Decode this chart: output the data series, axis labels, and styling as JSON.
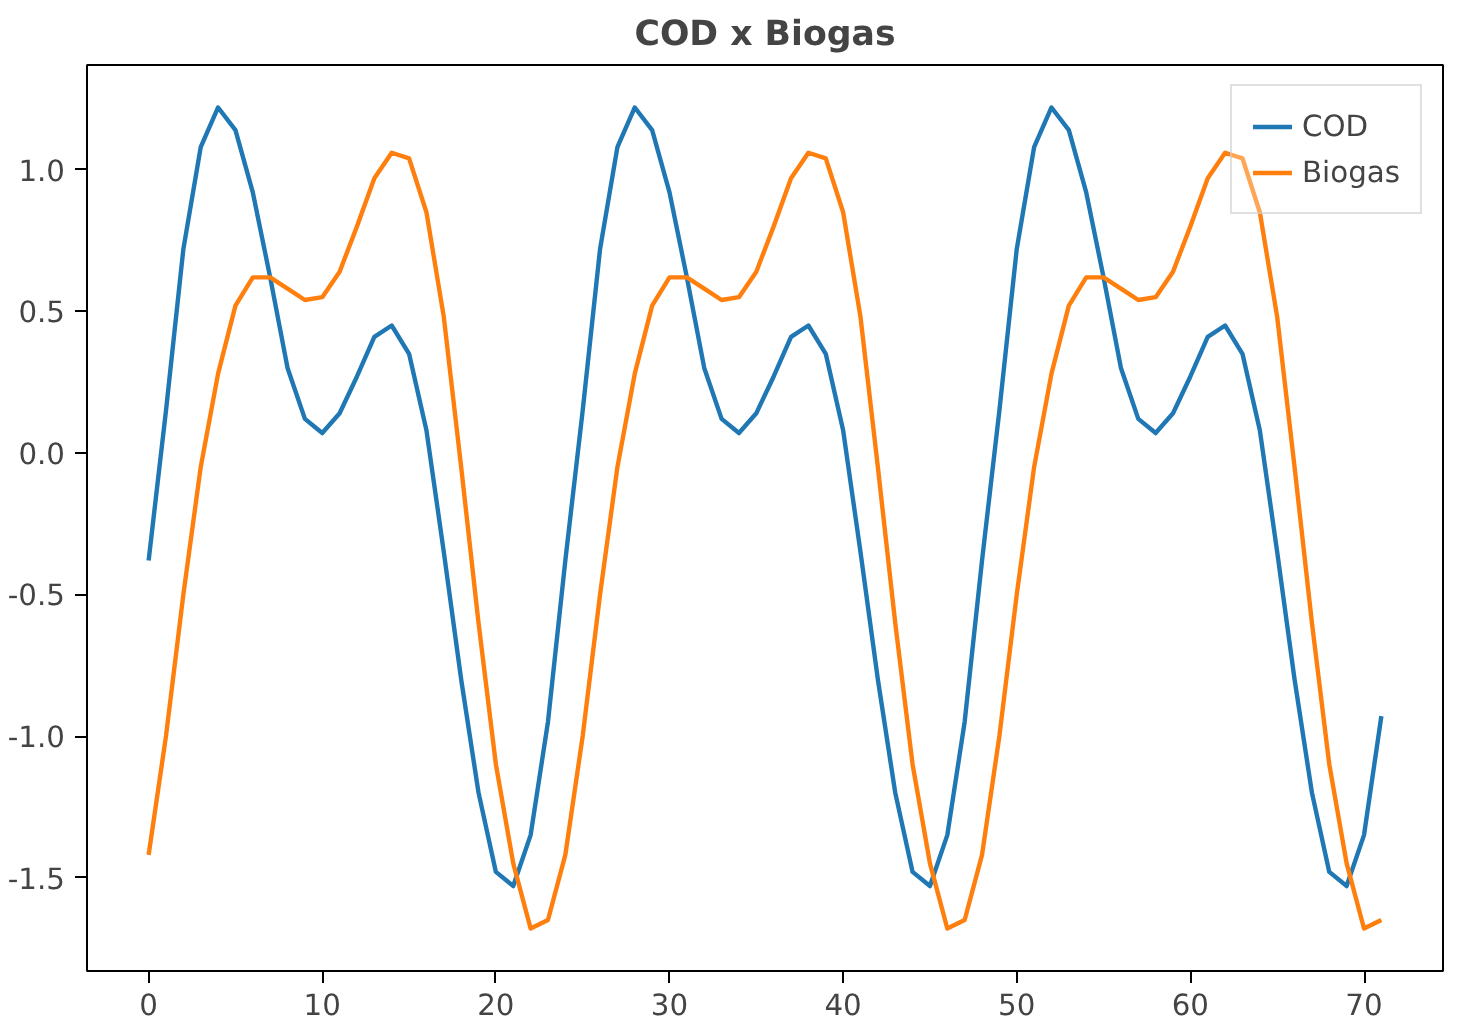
{
  "chart_data": {
    "type": "line",
    "title": "COD x Biogas",
    "x": [
      0,
      1,
      2,
      3,
      4,
      5,
      6,
      7,
      8,
      9,
      10,
      11,
      12,
      13,
      14,
      15,
      16,
      17,
      18,
      19,
      20,
      21,
      22,
      23,
      24,
      25,
      26,
      27,
      28,
      29,
      30,
      31,
      32,
      33,
      34,
      35,
      36,
      37,
      38,
      39,
      40,
      41,
      42,
      43,
      44,
      45,
      46,
      47,
      48,
      49,
      50,
      51,
      52,
      53,
      54,
      55,
      56,
      57,
      58,
      59,
      60,
      61,
      62,
      63,
      64,
      65,
      66,
      67,
      68,
      69,
      70,
      71
    ],
    "series": [
      {
        "name": "COD",
        "color": "#1f77b4",
        "values": [
          -0.38,
          0.15,
          0.72,
          1.08,
          1.22,
          1.14,
          0.92,
          0.62,
          0.3,
          0.12,
          0.07,
          0.14,
          0.27,
          0.41,
          0.45,
          0.35,
          0.08,
          -0.35,
          -0.8,
          -1.2,
          -1.48,
          -1.53,
          -1.35,
          -0.95,
          -0.38,
          0.15,
          0.72,
          1.08,
          1.22,
          1.14,
          0.92,
          0.62,
          0.3,
          0.12,
          0.07,
          0.14,
          0.27,
          0.41,
          0.45,
          0.35,
          0.08,
          -0.35,
          -0.8,
          -1.2,
          -1.48,
          -1.53,
          -1.35,
          -0.95,
          -0.38,
          0.15,
          0.72,
          1.08,
          1.22,
          1.14,
          0.92,
          0.62,
          0.3,
          0.12,
          0.07,
          0.14,
          0.27,
          0.41,
          0.45,
          0.35,
          0.08,
          -0.35,
          -0.8,
          -1.2,
          -1.48,
          -1.53,
          -1.35,
          -0.93
        ]
      },
      {
        "name": "Biogas",
        "color": "#ff7f0e",
        "values": [
          -1.42,
          -1.0,
          -0.5,
          -0.05,
          0.28,
          0.52,
          0.62,
          0.62,
          0.58,
          0.54,
          0.55,
          0.64,
          0.8,
          0.97,
          1.06,
          1.04,
          0.85,
          0.48,
          -0.05,
          -0.6,
          -1.1,
          -1.45,
          -1.68,
          -1.65,
          -1.42,
          -1.0,
          -0.5,
          -0.05,
          0.28,
          0.52,
          0.62,
          0.62,
          0.58,
          0.54,
          0.55,
          0.64,
          0.8,
          0.97,
          1.06,
          1.04,
          0.85,
          0.48,
          -0.05,
          -0.6,
          -1.1,
          -1.45,
          -1.68,
          -1.65,
          -1.42,
          -1.0,
          -0.5,
          -0.05,
          0.28,
          0.52,
          0.62,
          0.62,
          0.58,
          0.54,
          0.55,
          0.64,
          0.8,
          0.97,
          1.06,
          1.04,
          0.85,
          0.48,
          -0.05,
          -0.6,
          -1.1,
          -1.45,
          -1.68,
          -1.65
        ]
      }
    ],
    "xlim": [
      -3.55,
      74.55
    ],
    "ylim": [
      -1.83,
      1.37
    ],
    "xticks": [
      0,
      10,
      20,
      30,
      40,
      50,
      60,
      70
    ],
    "yticks": [
      -1.5,
      {
        "value": -1,
        "label": "-1.0"
      },
      -0.5,
      {
        "value": 0,
        "label": "0.0"
      },
      0.5,
      {
        "value": 1,
        "label": "1.0"
      }
    ],
    "legend": "top right",
    "grid": false
  }
}
